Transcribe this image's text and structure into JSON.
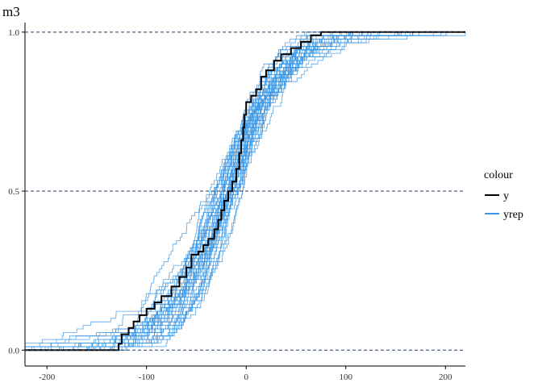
{
  "chart_data": {
    "type": "line",
    "title": "m3",
    "xlabel": "",
    "ylabel": "",
    "xlim": [
      -222,
      220
    ],
    "ylim": [
      -0.05,
      1.03
    ],
    "x_ticks": [
      "-200",
      "-100",
      "0",
      "100",
      "200"
    ],
    "x_tick_values": [
      -200,
      -100,
      0,
      100,
      200
    ],
    "y_ticks": [
      "0.0",
      "0.5",
      "1.0"
    ],
    "y_tick_values": [
      0.0,
      0.5,
      1.0
    ],
    "reference_lines_y": [
      0.0,
      0.5,
      1.0
    ],
    "grid": false,
    "legend": {
      "title": "colour",
      "placement": "right",
      "entries": [
        {
          "label": "y",
          "color": "#000000"
        },
        {
          "label": "yrep",
          "color": "#3a96e6"
        }
      ]
    },
    "series": [
      {
        "name": "y",
        "color": "#000000",
        "step": true,
        "points": [
          [
            -222,
            0.0
          ],
          [
            -130,
            0.0
          ],
          [
            -128,
            0.02
          ],
          [
            -125,
            0.05
          ],
          [
            -118,
            0.07
          ],
          [
            -113,
            0.09
          ],
          [
            -107,
            0.11
          ],
          [
            -100,
            0.13
          ],
          [
            -92,
            0.15
          ],
          [
            -85,
            0.17
          ],
          [
            -75,
            0.2
          ],
          [
            -67,
            0.23
          ],
          [
            -60,
            0.26
          ],
          [
            -55,
            0.3
          ],
          [
            -48,
            0.31
          ],
          [
            -43,
            0.33
          ],
          [
            -38,
            0.35
          ],
          [
            -32,
            0.38
          ],
          [
            -28,
            0.41
          ],
          [
            -25,
            0.44
          ],
          [
            -22,
            0.47
          ],
          [
            -18,
            0.5
          ],
          [
            -14,
            0.53
          ],
          [
            -10,
            0.57
          ],
          [
            -7,
            0.62
          ],
          [
            -5,
            0.66
          ],
          [
            -3,
            0.7
          ],
          [
            -2,
            0.74
          ],
          [
            0,
            0.78
          ],
          [
            5,
            0.8
          ],
          [
            10,
            0.82
          ],
          [
            15,
            0.86
          ],
          [
            20,
            0.88
          ],
          [
            28,
            0.91
          ],
          [
            35,
            0.93
          ],
          [
            45,
            0.95
          ],
          [
            55,
            0.97
          ],
          [
            65,
            0.99
          ],
          [
            75,
            1.0
          ],
          [
            220,
            1.0
          ]
        ]
      },
      {
        "name": "yrep",
        "color": "#3a96e6",
        "draws": 40,
        "center": -18,
        "scale": 30
      }
    ]
  }
}
